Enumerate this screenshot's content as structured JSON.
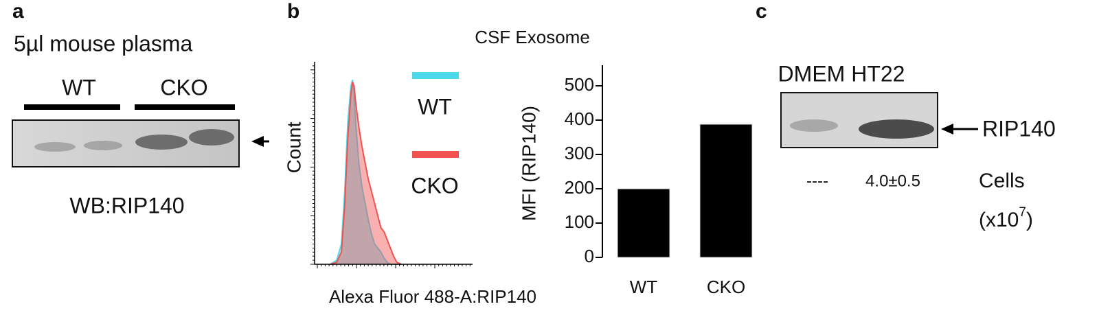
{
  "panel_a": {
    "label": "a",
    "title": "5µl mouse plasma",
    "lanes": [
      "WT",
      "CKO"
    ],
    "caption": "WB:RIP140"
  },
  "panel_b": {
    "label": "b",
    "title": "CSF Exosome"
  },
  "panel_c": {
    "label": "c",
    "lanes": "DMEM HT22",
    "band": "RIP140",
    "quant": [
      "----",
      "4.0±0.5"
    ],
    "unit_name": "Cells",
    "unit_base": "(x10",
    "unit_exp": "7",
    "unit_close": ")"
  },
  "chart_data": [
    {
      "type": "area",
      "xlabel": "Alexa Fluor 488-A:RIP140",
      "ylabel": "Count",
      "x": [
        10,
        14,
        17,
        19,
        21,
        23,
        24,
        25,
        26,
        28,
        30,
        32,
        34,
        36,
        38,
        40,
        42,
        44,
        46,
        48,
        50,
        52,
        55
      ],
      "xlim": [
        0,
        100
      ],
      "ylim": [
        0,
        100
      ],
      "series": [
        {
          "name": "WT",
          "color": "#4dd8ec",
          "values": [
            0,
            2,
            10,
            35,
            70,
            88,
            91,
            85,
            70,
            50,
            38,
            30,
            22,
            15,
            10,
            8,
            6,
            3,
            1,
            0,
            0,
            0,
            0
          ]
        },
        {
          "name": "CKO",
          "color": "#f0534f",
          "values": [
            0,
            1,
            6,
            28,
            62,
            84,
            90,
            88,
            80,
            68,
            58,
            50,
            42,
            36,
            30,
            24,
            18,
            16,
            12,
            8,
            4,
            1,
            0
          ]
        }
      ]
    },
    {
      "type": "bar",
      "ylabel": "MFI (RIP140)",
      "categories": [
        "WT",
        "CKO"
      ],
      "values": [
        200,
        388
      ],
      "color": "#000000",
      "ylim": [
        0,
        560
      ],
      "yticks": [
        0,
        100,
        200,
        300,
        400,
        500
      ]
    }
  ]
}
